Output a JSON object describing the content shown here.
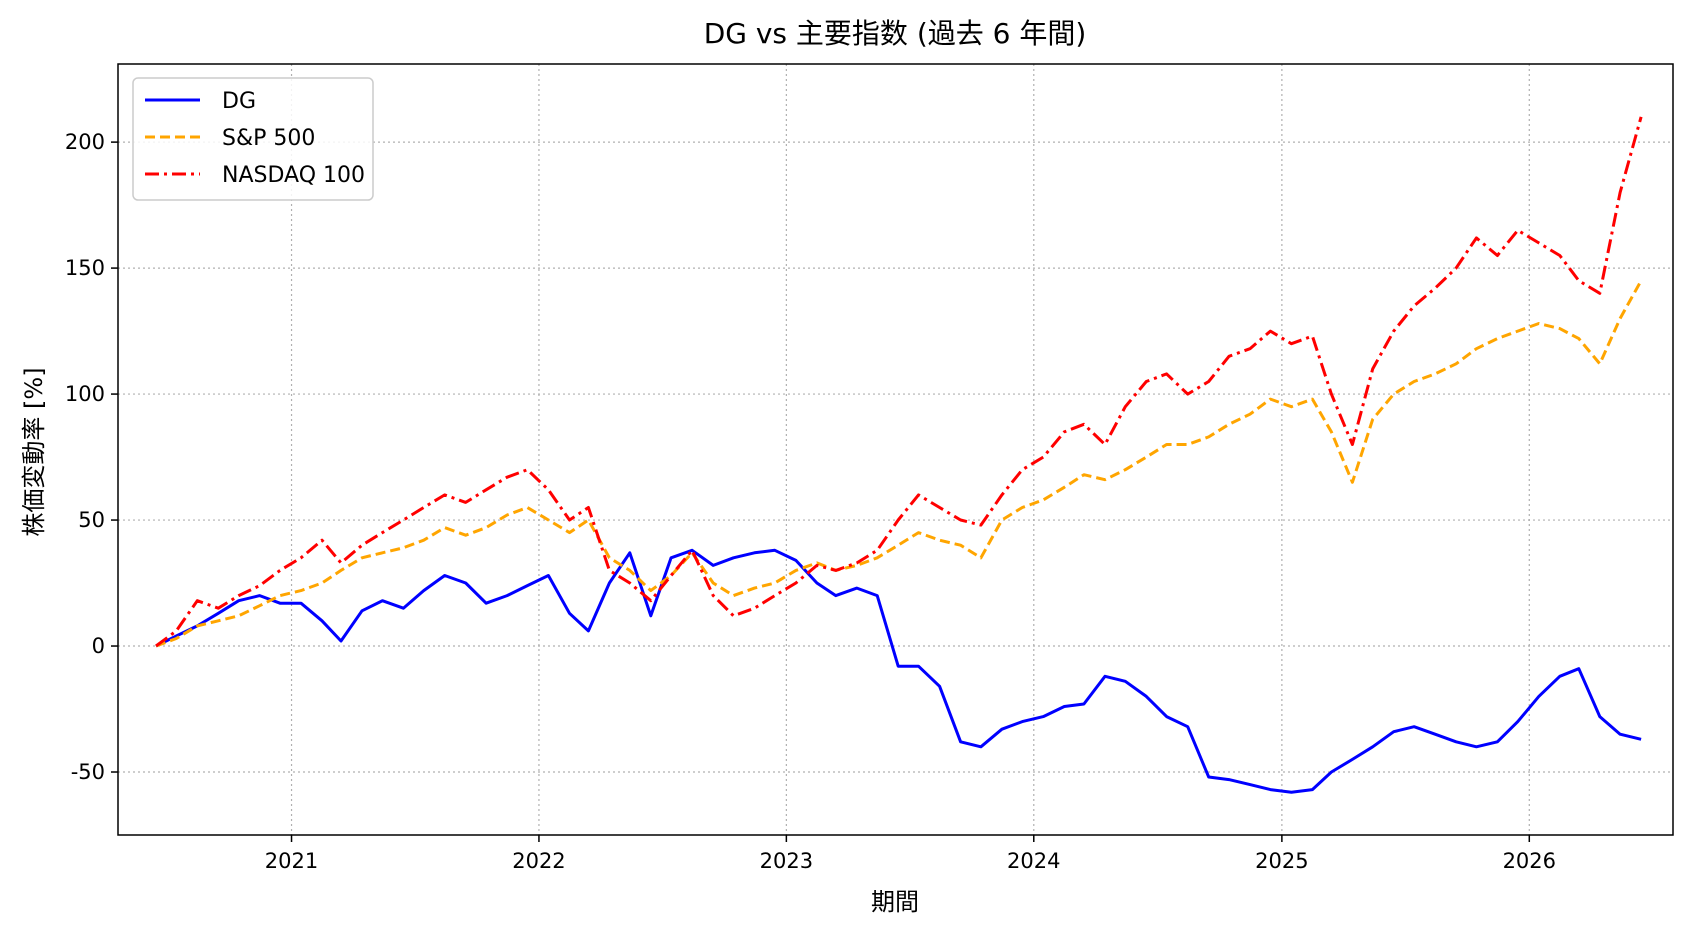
{
  "chart_data": {
    "type": "line",
    "title": "DG vs 主要指数 (過去 6 年間)",
    "xlabel": "期間",
    "ylabel": "株価変動率 [%]",
    "x_ticks": [
      "2021",
      "2022",
      "2023",
      "2024",
      "2025",
      "2026"
    ],
    "y_ticks": [
      -50,
      0,
      50,
      100,
      150,
      200
    ],
    "xlim": [
      "2020-04-20",
      "2026-08-01"
    ],
    "ylim": [
      -75,
      231
    ],
    "grid": true,
    "legend_position": "top-left",
    "x": [
      "2020-06",
      "2020-07",
      "2020-08",
      "2020-09",
      "2020-10",
      "2020-11",
      "2020-12",
      "2021-01",
      "2021-02",
      "2021-03",
      "2021-04",
      "2021-05",
      "2021-06",
      "2021-07",
      "2021-08",
      "2021-09",
      "2021-10",
      "2021-11",
      "2021-12",
      "2022-01",
      "2022-02",
      "2022-03",
      "2022-04",
      "2022-05",
      "2022-06",
      "2022-07",
      "2022-08",
      "2022-09",
      "2022-10",
      "2022-11",
      "2022-12",
      "2023-01",
      "2023-02",
      "2023-03",
      "2023-04",
      "2023-05",
      "2023-06",
      "2023-07",
      "2023-08",
      "2023-09",
      "2023-10",
      "2023-11",
      "2023-12",
      "2024-01",
      "2024-02",
      "2024-03",
      "2024-04",
      "2024-05",
      "2024-06",
      "2024-07",
      "2024-08",
      "2024-09",
      "2024-10",
      "2024-11",
      "2024-12",
      "2025-01",
      "2025-02",
      "2025-03",
      "2025-04",
      "2025-05",
      "2025-06",
      "2025-07",
      "2025-08",
      "2025-09",
      "2025-10",
      "2025-11",
      "2025-12",
      "2026-01",
      "2026-02",
      "2026-03",
      "2026-04",
      "2026-05",
      "2026-06"
    ],
    "series": [
      {
        "name": "DG",
        "color": "#0000ff",
        "style": "solid",
        "values": [
          0,
          4,
          8,
          13,
          18,
          20,
          17,
          17,
          10,
          2,
          14,
          18,
          15,
          22,
          28,
          25,
          17,
          20,
          24,
          28,
          13,
          6,
          25,
          37,
          12,
          35,
          38,
          32,
          35,
          37,
          38,
          34,
          25,
          20,
          23,
          20,
          -8,
          -8,
          -16,
          -38,
          -40,
          -33,
          -30,
          -28,
          -24,
          -23,
          -12,
          -14,
          -20,
          -28,
          -32,
          -52,
          -53,
          -55,
          -57,
          -58,
          -57,
          -50,
          -45,
          -40,
          -34,
          -32,
          -35,
          -38,
          -40,
          -38,
          -30,
          -20,
          -12,
          -9,
          -28,
          -35,
          -37
        ]
      },
      {
        "name": "S&P 500",
        "color": "#ffa500",
        "style": "dashed",
        "values": [
          0,
          3,
          8,
          10,
          12,
          16,
          20,
          22,
          25,
          30,
          35,
          37,
          39,
          42,
          47,
          44,
          47,
          52,
          55,
          50,
          45,
          50,
          35,
          30,
          22,
          28,
          37,
          25,
          20,
          23,
          25,
          30,
          33,
          30,
          32,
          35,
          40,
          45,
          42,
          40,
          35,
          50,
          55,
          58,
          63,
          68,
          66,
          70,
          75,
          80,
          80,
          83,
          88,
          92,
          98,
          95,
          98,
          85,
          65,
          90,
          100,
          105,
          108,
          112,
          118,
          122,
          125,
          128,
          126,
          122,
          112,
          130,
          145
        ]
      },
      {
        "name": "NASDAQ 100",
        "color": "#ff0000",
        "style": "dashdot",
        "values": [
          0,
          6,
          18,
          15,
          20,
          24,
          30,
          35,
          42,
          33,
          40,
          45,
          50,
          55,
          60,
          57,
          62,
          67,
          70,
          62,
          50,
          55,
          30,
          25,
          18,
          28,
          38,
          20,
          12,
          15,
          20,
          25,
          32,
          30,
          33,
          38,
          50,
          60,
          55,
          50,
          48,
          60,
          70,
          75,
          85,
          88,
          80,
          95,
          105,
          108,
          100,
          105,
          115,
          118,
          125,
          120,
          123,
          100,
          80,
          110,
          125,
          135,
          142,
          150,
          162,
          155,
          165,
          160,
          155,
          145,
          140,
          180,
          210
        ]
      }
    ]
  }
}
